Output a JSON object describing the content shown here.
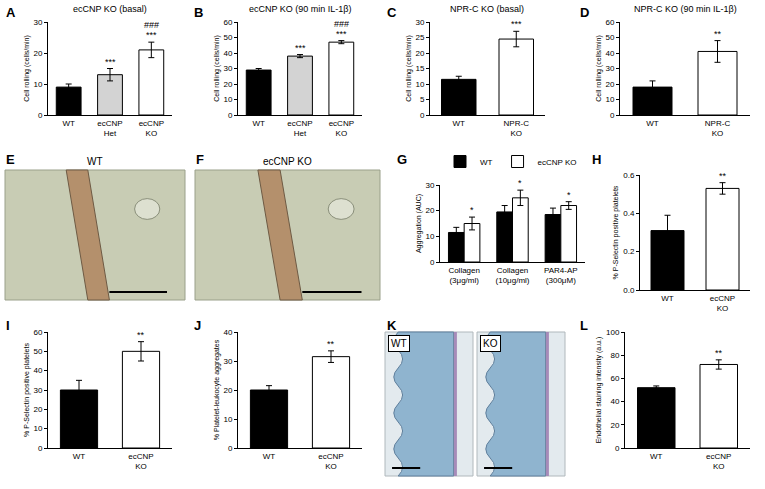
{
  "chart_data": [
    {
      "panel": "A",
      "type": "bar",
      "title": "ecCNP KO (basal)",
      "ylabel": "Cell rolling (cells/min)",
      "categories": [
        "WT",
        "ecCNP Het",
        "ecCNP KO"
      ],
      "values": [
        9,
        13,
        21
      ],
      "errors": [
        1,
        2,
        2.5
      ],
      "colors": [
        "#000000",
        "#d3d3d3",
        "#ffffff"
      ],
      "ylim": [
        0,
        30
      ],
      "yticks": [
        0,
        10,
        20,
        30
      ],
      "annotations": [
        {
          "category": "ecCNP Het",
          "text": "***"
        },
        {
          "category": "ecCNP KO",
          "text": "***"
        },
        {
          "category": "ecCNP KO",
          "text": "###"
        }
      ]
    },
    {
      "panel": "B",
      "type": "bar",
      "title": "ecCNP KO (90 min IL-1β)",
      "ylabel": "Cell rolling (cells/min)",
      "categories": [
        "WT",
        "ecCNP Het",
        "ecCNP KO"
      ],
      "values": [
        29,
        38,
        47
      ],
      "errors": [
        1,
        1,
        1
      ],
      "colors": [
        "#000000",
        "#d3d3d3",
        "#ffffff"
      ],
      "ylim": [
        0,
        60
      ],
      "yticks": [
        0,
        10,
        20,
        30,
        40,
        50,
        60
      ],
      "annotations": [
        {
          "category": "ecCNP Het",
          "text": "***"
        },
        {
          "category": "ecCNP KO",
          "text": "***"
        },
        {
          "category": "ecCNP KO",
          "text": "###"
        }
      ]
    },
    {
      "panel": "C",
      "type": "bar",
      "title": "NPR-C KO (basal)",
      "ylabel": "Cell rolling (cells/min)",
      "categories": [
        "WT",
        "NPR-C KO"
      ],
      "values": [
        11.5,
        24.5
      ],
      "errors": [
        1,
        2.5
      ],
      "colors": [
        "#000000",
        "#ffffff"
      ],
      "ylim": [
        0,
        30
      ],
      "yticks": [
        0,
        5,
        10,
        15,
        20,
        25,
        30
      ],
      "annotations": [
        {
          "category": "NPR-C KO",
          "text": "***"
        }
      ]
    },
    {
      "panel": "D",
      "type": "bar",
      "title": "NPR-C KO (90 min IL-1β)",
      "ylabel": "Cell rolling (cells/min)",
      "categories": [
        "WT",
        "NPR-C KO"
      ],
      "values": [
        18,
        41
      ],
      "errors": [
        4,
        7
      ],
      "colors": [
        "#000000",
        "#ffffff"
      ],
      "ylim": [
        0,
        60
      ],
      "yticks": [
        0,
        10,
        20,
        30,
        40,
        50,
        60
      ],
      "annotations": [
        {
          "category": "NPR-C KO",
          "text": "**"
        }
      ]
    },
    {
      "panel": "E",
      "type": "image",
      "labels": [
        "WT"
      ]
    },
    {
      "panel": "F",
      "type": "image",
      "labels": [
        "ecCNP KO"
      ]
    },
    {
      "panel": "G",
      "type": "bar",
      "ylabel": "Aggregation (AUC)",
      "categories": [
        "Collagen (3μg/ml)",
        "Collagen (10μg/ml)",
        "PAR4-AP (300μM)"
      ],
      "series": [
        {
          "name": "WT",
          "color": "#000000",
          "values": [
            11.5,
            19.5,
            18.5
          ],
          "errors": [
            2,
            2.5,
            2.5
          ]
        },
        {
          "name": "ecCNP KO",
          "color": "#ffffff",
          "values": [
            15,
            25,
            22
          ],
          "errors": [
            2.5,
            3,
            1.5
          ]
        }
      ],
      "ylim": [
        0,
        30
      ],
      "yticks": [
        0,
        10,
        20,
        30
      ],
      "legend": "top-left",
      "annotations": [
        {
          "category": "Collagen (3μg/ml)",
          "series": "ecCNP KO",
          "text": "*"
        },
        {
          "category": "Collagen (10μg/ml)",
          "series": "ecCNP KO",
          "text": "*"
        },
        {
          "category": "PAR4-AP (300μM)",
          "series": "ecCNP KO",
          "text": "*"
        }
      ]
    },
    {
      "panel": "H",
      "type": "bar",
      "ylabel": "% P-Selectin positive platelets",
      "categories": [
        "WT",
        "ecCNP KO"
      ],
      "values": [
        0.31,
        0.53
      ],
      "errors": [
        0.08,
        0.03
      ],
      "colors": [
        "#000000",
        "#ffffff"
      ],
      "ylim": [
        0,
        0.6
      ],
      "yticks": [
        {
          "value": 0,
          "label": "0.0"
        },
        0.2,
        0.4,
        0.6
      ],
      "annotations": [
        {
          "category": "ecCNP KO",
          "text": "**"
        }
      ]
    },
    {
      "panel": "I",
      "type": "bar",
      "ylabel": "% P-Selectin positive platelets",
      "categories": [
        "WT",
        "ecCNP KO"
      ],
      "values": [
        30,
        50
      ],
      "errors": [
        5,
        5
      ],
      "colors": [
        "#000000",
        "#ffffff"
      ],
      "ylim": [
        0,
        60
      ],
      "yticks": [
        0,
        10,
        20,
        30,
        40,
        50,
        60
      ],
      "annotations": [
        {
          "category": "ecCNP KO",
          "text": "**"
        }
      ]
    },
    {
      "panel": "J",
      "type": "bar",
      "ylabel": "% Platelet-leukocyte aggregates",
      "categories": [
        "WT",
        "ecCNP KO"
      ],
      "values": [
        20,
        31.5
      ],
      "errors": [
        1.5,
        2
      ],
      "colors": [
        "#000000",
        "#ffffff"
      ],
      "ylim": [
        0,
        40
      ],
      "yticks": [
        0,
        10,
        20,
        30,
        40
      ],
      "annotations": [
        {
          "category": "ecCNP KO",
          "text": "**"
        }
      ]
    },
    {
      "panel": "K",
      "type": "image",
      "labels": [
        "WT",
        "KO"
      ]
    },
    {
      "panel": "L",
      "type": "bar",
      "ylabel": "Endothelial staining intensity (a.u.)",
      "categories": [
        "WT",
        "ecCNP KO"
      ],
      "values": [
        52,
        72
      ],
      "errors": [
        1.5,
        4
      ],
      "colors": [
        "#000000",
        "#ffffff"
      ],
      "ylim": [
        0,
        100
      ],
      "yticks": [
        0,
        20,
        40,
        60,
        80,
        100
      ],
      "annotations": [
        {
          "category": "ecCNP KO",
          "text": "**"
        }
      ]
    }
  ]
}
